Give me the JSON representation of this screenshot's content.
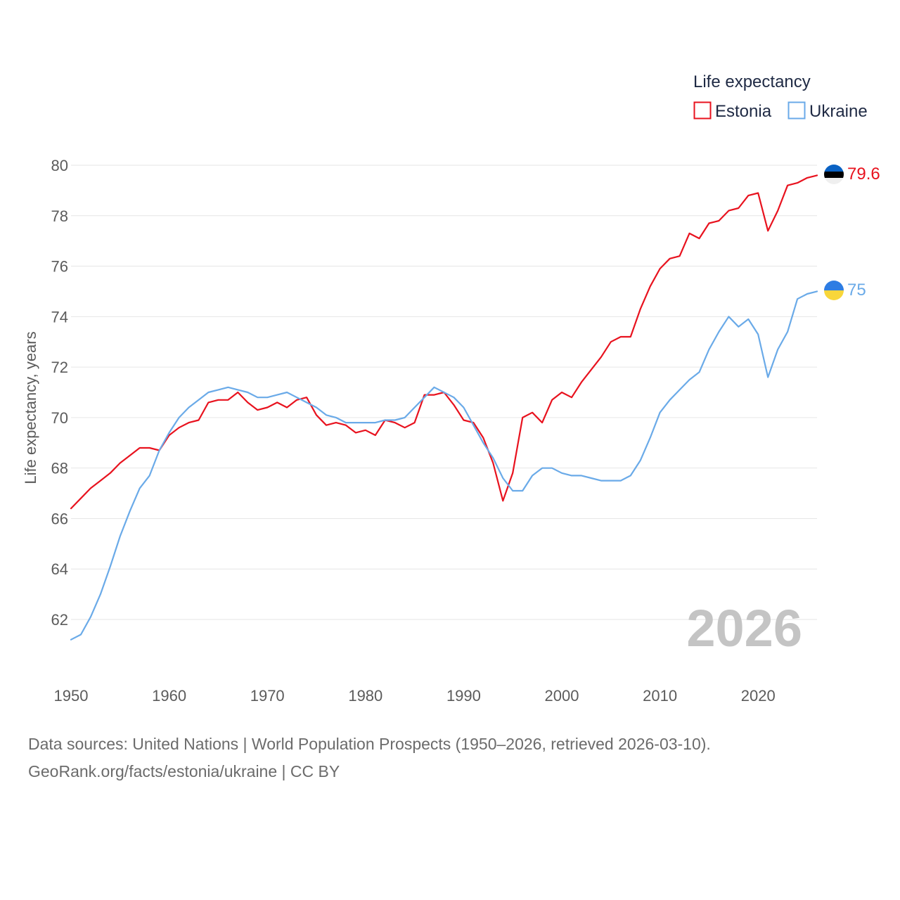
{
  "chart_data": {
    "type": "line",
    "title": "",
    "legend_title": "Life expectancy",
    "xlabel": "",
    "ylabel": "Life expectancy, years",
    "xlim": [
      1950,
      2026
    ],
    "ylim": [
      60.6,
      80.6
    ],
    "x_ticks": [
      "1950",
      "1960",
      "1970",
      "1980",
      "1990",
      "2000",
      "2010",
      "2020"
    ],
    "y_ticks": [
      "62",
      "64",
      "66",
      "68",
      "70",
      "72",
      "74",
      "76",
      "78",
      "80"
    ],
    "year_watermark": "2026",
    "legend_position": "top-right",
    "x": [
      1950,
      1951,
      1952,
      1953,
      1954,
      1955,
      1956,
      1957,
      1958,
      1959,
      1960,
      1961,
      1962,
      1963,
      1964,
      1965,
      1966,
      1967,
      1968,
      1969,
      1970,
      1971,
      1972,
      1973,
      1974,
      1975,
      1976,
      1977,
      1978,
      1979,
      1980,
      1981,
      1982,
      1983,
      1984,
      1985,
      1986,
      1987,
      1988,
      1989,
      1990,
      1991,
      1992,
      1993,
      1994,
      1995,
      1996,
      1997,
      1998,
      1999,
      2000,
      2001,
      2002,
      2003,
      2004,
      2005,
      2006,
      2007,
      2008,
      2009,
      2010,
      2011,
      2012,
      2013,
      2014,
      2015,
      2016,
      2017,
      2018,
      2019,
      2020,
      2021,
      2022,
      2023,
      2024,
      2025,
      2026
    ],
    "series": [
      {
        "name": "Estonia",
        "color": "#e8121e",
        "end_label": "79.6",
        "flag": "estonia-flag",
        "values": [
          66.4,
          66.8,
          67.2,
          67.5,
          67.8,
          68.2,
          68.5,
          68.8,
          68.8,
          68.7,
          69.3,
          69.6,
          69.8,
          69.9,
          70.6,
          70.7,
          70.7,
          71.0,
          70.6,
          70.3,
          70.4,
          70.6,
          70.4,
          70.7,
          70.8,
          70.1,
          69.7,
          69.8,
          69.7,
          69.4,
          69.5,
          69.3,
          69.9,
          69.8,
          69.6,
          69.8,
          70.9,
          70.9,
          71.0,
          70.5,
          69.9,
          69.8,
          69.2,
          68.2,
          66.7,
          67.8,
          70.0,
          70.2,
          69.8,
          70.7,
          71.0,
          70.8,
          71.4,
          71.9,
          72.4,
          73.0,
          73.2,
          73.2,
          74.3,
          75.2,
          75.9,
          76.3,
          76.4,
          77.3,
          77.1,
          77.7,
          77.8,
          78.2,
          78.3,
          78.8,
          78.9,
          77.4,
          78.2,
          79.2,
          79.3,
          79.5,
          79.6
        ]
      },
      {
        "name": "Ukraine",
        "color": "#6aaae8",
        "end_label": "75",
        "flag": "ukraine-flag",
        "values": [
          61.2,
          61.4,
          62.1,
          63.0,
          64.1,
          65.3,
          66.3,
          67.2,
          67.7,
          68.7,
          69.4,
          70.0,
          70.4,
          70.7,
          71.0,
          71.1,
          71.2,
          71.1,
          71.0,
          70.8,
          70.8,
          70.9,
          71.0,
          70.8,
          70.6,
          70.4,
          70.1,
          70.0,
          69.8,
          69.8,
          69.8,
          69.8,
          69.9,
          69.9,
          70.0,
          70.4,
          70.8,
          71.2,
          71.0,
          70.8,
          70.4,
          69.7,
          69.0,
          68.4,
          67.6,
          67.1,
          67.1,
          67.7,
          68.0,
          68.0,
          67.8,
          67.7,
          67.7,
          67.6,
          67.5,
          67.5,
          67.5,
          67.7,
          68.3,
          69.2,
          70.2,
          70.7,
          71.1,
          71.5,
          71.8,
          72.7,
          73.4,
          74.0,
          73.6,
          73.9,
          73.3,
          71.6,
          72.7,
          73.4,
          74.7,
          74.9,
          75.0
        ]
      }
    ]
  },
  "footer": {
    "sources": "Data sources: United Nations | World Population Prospects (1950–2026, retrieved 2026-03-10).",
    "credit": "GeoRank.org/facts/estonia/ukraine | CC BY"
  }
}
